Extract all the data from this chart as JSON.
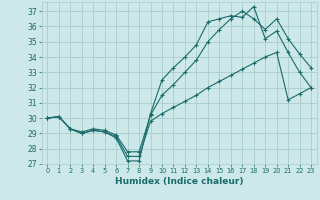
{
  "xlabel": "Humidex (Indice chaleur)",
  "background_color": "#cce8e8",
  "grid_color": "#aacccc",
  "line_color": "#1a6b6b",
  "xlim": [
    -0.5,
    23.5
  ],
  "ylim": [
    27,
    37.6
  ],
  "yticks": [
    27,
    28,
    29,
    30,
    31,
    32,
    33,
    34,
    35,
    36,
    37
  ],
  "xticks": [
    0,
    1,
    2,
    3,
    4,
    5,
    6,
    7,
    8,
    9,
    10,
    11,
    12,
    13,
    14,
    15,
    16,
    17,
    18,
    19,
    20,
    21,
    22,
    23
  ],
  "line1_x": [
    0,
    1,
    2,
    3,
    4,
    5,
    6,
    7,
    8,
    9,
    10,
    11,
    12,
    13,
    14,
    15,
    16,
    17,
    18,
    19,
    20,
    21,
    22,
    23
  ],
  "line1_y": [
    30.0,
    30.1,
    29.3,
    29.0,
    29.2,
    29.1,
    28.7,
    27.2,
    27.2,
    30.3,
    32.5,
    33.3,
    34.0,
    34.8,
    36.3,
    36.5,
    36.7,
    36.6,
    37.3,
    35.2,
    35.7,
    34.3,
    33.0,
    32.0
  ],
  "line2_x": [
    0,
    1,
    2,
    3,
    4,
    5,
    6,
    7,
    8,
    9,
    10,
    11,
    12,
    13,
    14,
    15,
    16,
    17,
    18,
    19,
    20,
    21,
    22,
    23
  ],
  "line2_y": [
    30.0,
    30.1,
    29.3,
    29.1,
    29.3,
    29.2,
    28.9,
    27.8,
    27.8,
    30.2,
    31.5,
    32.2,
    33.0,
    33.8,
    35.0,
    35.8,
    36.5,
    37.0,
    36.5,
    35.8,
    36.5,
    35.2,
    34.2,
    33.3
  ],
  "line3_x": [
    0,
    1,
    2,
    3,
    4,
    5,
    6,
    7,
    8,
    9,
    10,
    11,
    12,
    13,
    14,
    15,
    16,
    17,
    18,
    19,
    20,
    21,
    22,
    23
  ],
  "line3_y": [
    30.0,
    30.1,
    29.3,
    29.0,
    29.2,
    29.1,
    28.8,
    27.5,
    27.5,
    29.8,
    30.3,
    30.7,
    31.1,
    31.5,
    32.0,
    32.4,
    32.8,
    33.2,
    33.6,
    34.0,
    34.3,
    31.2,
    31.6,
    32.0
  ]
}
